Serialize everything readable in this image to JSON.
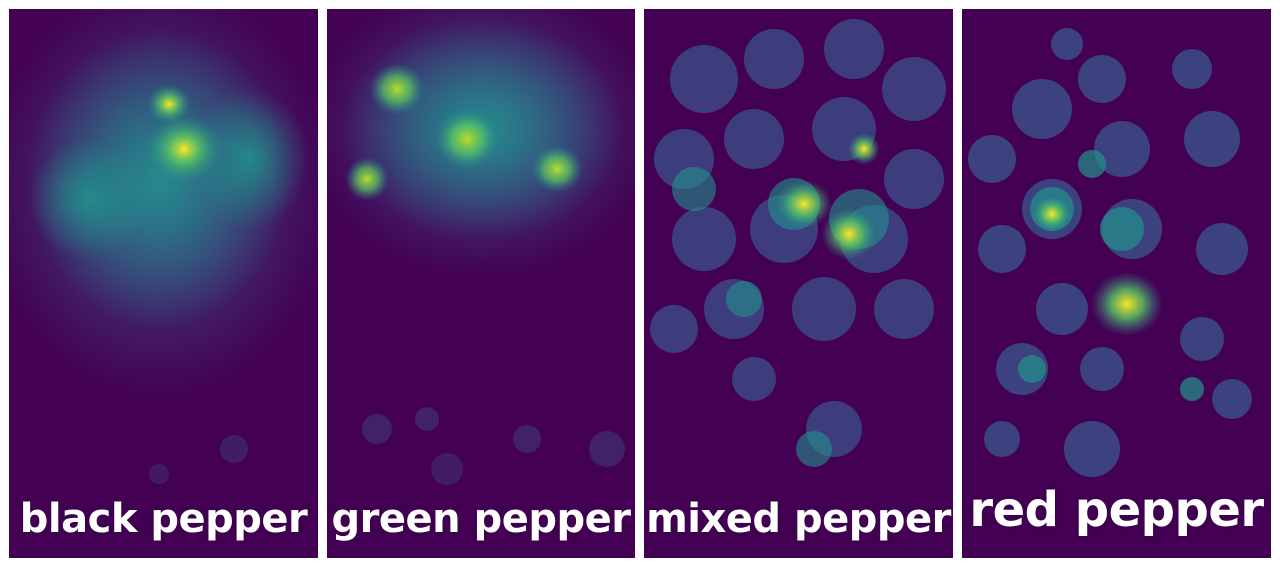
{
  "panels": [
    {
      "label": "black pepper"
    },
    {
      "label": "green pepper"
    },
    {
      "label": "mixed pepper"
    },
    {
      "label": "red pepper"
    }
  ],
  "colormap": "viridis",
  "colors": {
    "background": "#440154",
    "low": "#3b528b",
    "mid": "#21918c",
    "high": "#5ec962",
    "peak": "#fde725",
    "label": "#ffffff"
  }
}
